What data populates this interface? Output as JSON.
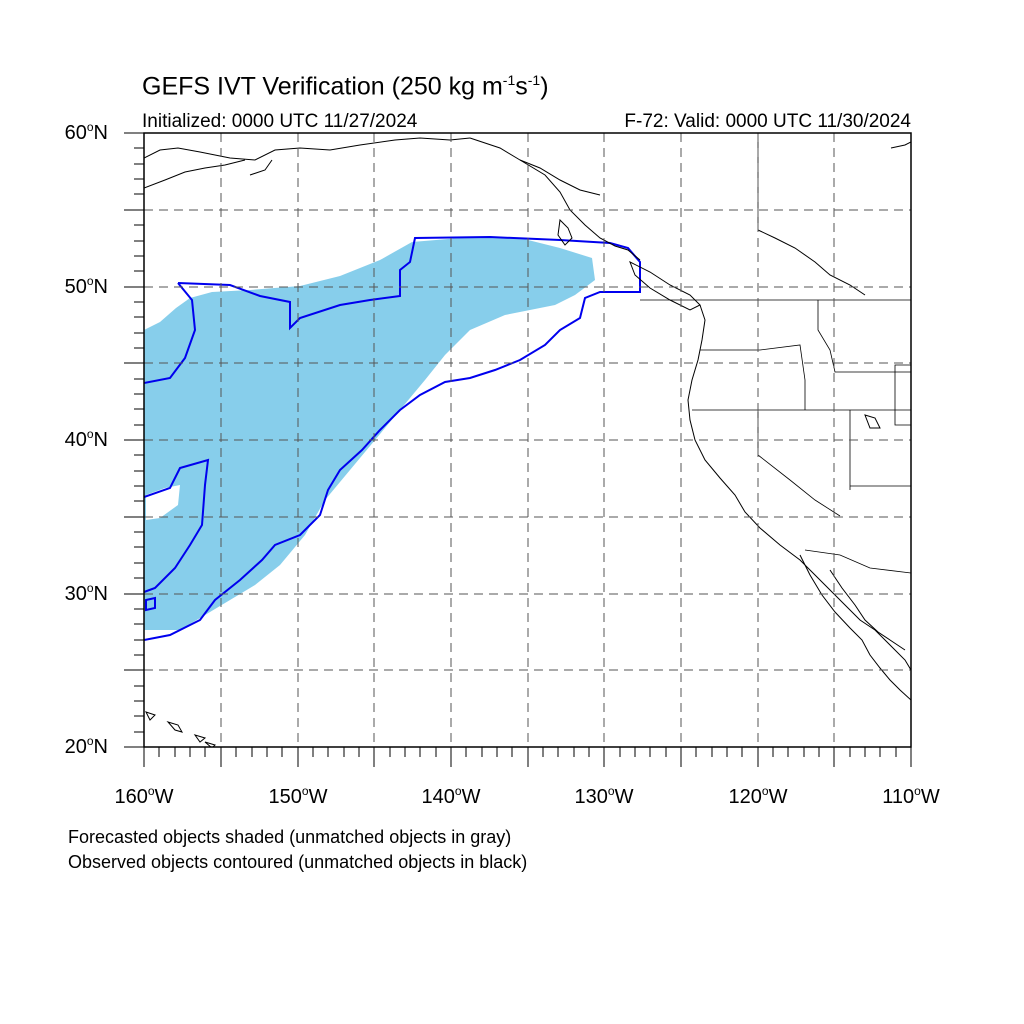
{
  "title": {
    "main": "GEFS IVT Verification (250 kg m",
    "exp1": "-1",
    "mid": "s",
    "exp2": "-1",
    "close": ")"
  },
  "subtitle_left": "Initialized: 0000 UTC 11/27/2024",
  "subtitle_right": "F-72: Valid: 0000 UTC 11/30/2024",
  "degree_mark": "o",
  "lat_labels": [
    {
      "value": "60",
      "hemi": "N"
    },
    {
      "value": "50",
      "hemi": "N"
    },
    {
      "value": "40",
      "hemi": "N"
    },
    {
      "value": "30",
      "hemi": "N"
    },
    {
      "value": "20",
      "hemi": "N"
    }
  ],
  "lon_labels": [
    {
      "value": "160",
      "hemi": "W"
    },
    {
      "value": "150",
      "hemi": "W"
    },
    {
      "value": "140",
      "hemi": "W"
    },
    {
      "value": "130",
      "hemi": "W"
    },
    {
      "value": "120",
      "hemi": "W"
    },
    {
      "value": "110",
      "hemi": "W"
    }
  ],
  "notes": [
    "Forecasted objects shaded (unmatched objects in gray)",
    "Observed objects contoured (unmatched objects in black)"
  ],
  "map": {
    "lon_range": [
      -160,
      -110
    ],
    "lat_range": [
      20,
      60
    ],
    "grid_interval_deg": 5,
    "colors": {
      "forecast_fill": "#87ceeb",
      "observed_contour": "#0000ee",
      "grid": "#555555",
      "coast": "#000000"
    }
  }
}
